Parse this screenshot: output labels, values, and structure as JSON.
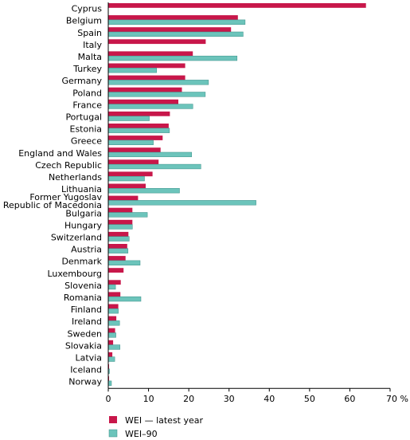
{
  "chart_data": {
    "type": "bar",
    "orientation": "horizontal",
    "categories": [
      "Cyprus",
      "Belgium",
      "Spain",
      "Italy",
      "Malta",
      "Turkey",
      "Germany",
      "Poland",
      "France",
      "Portugal",
      "Estonia",
      "Greece",
      "England and Wales",
      "Czech Republic",
      "Netherlands",
      "Lithuania",
      "Former Yugoslav\nRepublic of Macedonia",
      "Bulgaria",
      "Hungary",
      "Switzerland",
      "Austria",
      "Denmark",
      "Luxembourg",
      "Slovenia",
      "Romania",
      "Finland",
      "Ireland",
      "Sweden",
      "Slovakia",
      "Latvia",
      "Iceland",
      "Norway"
    ],
    "series": [
      {
        "name": "WEI — latest year",
        "color": "#c8174a",
        "values": [
          64,
          32.2,
          30.5,
          24.2,
          21,
          19.1,
          19.1,
          18.3,
          17.4,
          15.3,
          15,
          13.5,
          13,
          12.5,
          11,
          9.3,
          7.4,
          6,
          6,
          5,
          4.7,
          4.3,
          3.8,
          3.1,
          3,
          2.5,
          2,
          1.7,
          1.2,
          1,
          0.2,
          0.2
        ]
      },
      {
        "name": "WEI–90",
        "color": "#6cc4bb",
        "values": [
          null,
          34,
          33.5,
          null,
          32,
          12,
          24.9,
          24.1,
          21,
          10.2,
          15.2,
          11.2,
          20.7,
          23,
          9,
          17.7,
          36.7,
          9.7,
          6,
          5.2,
          4.9,
          7.9,
          null,
          1.8,
          8.1,
          2.5,
          2.8,
          1.9,
          2.9,
          1.6,
          0.3,
          0.8
        ]
      }
    ],
    "xlim": [
      0,
      70
    ],
    "xticks": [
      0,
      10,
      20,
      30,
      40,
      50,
      60,
      70
    ],
    "xtick_labels": [
      "0",
      "10",
      "20",
      "30",
      "40",
      "50",
      "60",
      "70 %"
    ],
    "grid": false,
    "legend_position": "bottom-left"
  }
}
